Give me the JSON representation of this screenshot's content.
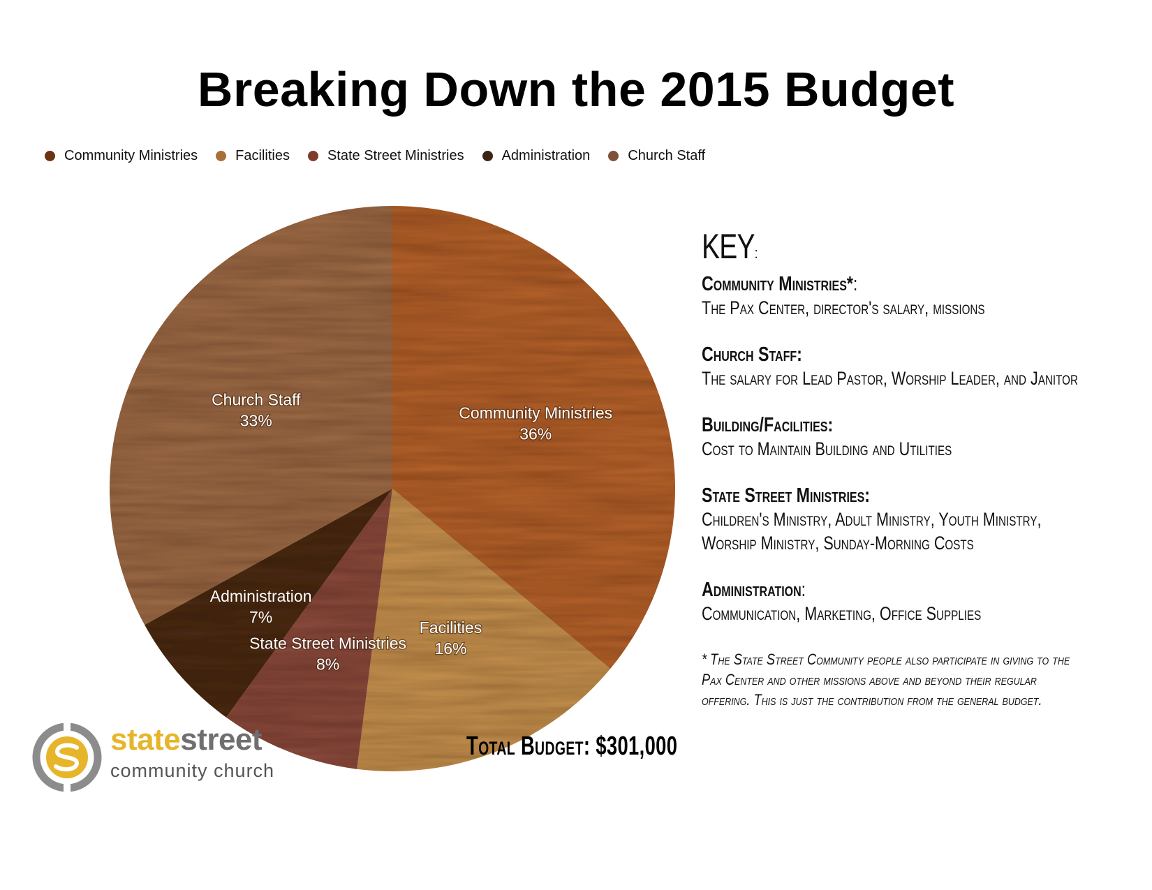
{
  "title": "Breaking Down the 2015 Budget",
  "chart_data": {
    "type": "pie",
    "title": "Breaking Down the 2015 Budget",
    "legend_position": "top-left",
    "legend": [
      {
        "name": "Community Ministries",
        "color": "#6b3414"
      },
      {
        "name": "Facilities",
        "color": "#a8703a"
      },
      {
        "name": "State Street Ministries",
        "color": "#7d3d2a"
      },
      {
        "name": "Administration",
        "color": "#3c2312"
      },
      {
        "name": "Church Staff",
        "color": "#7e5238"
      }
    ],
    "slices": [
      {
        "name": "Community Ministries",
        "label": "Community Ministries",
        "value": 36,
        "value_label": "36%",
        "color": "#b5622a"
      },
      {
        "name": "Facilities",
        "label": "Facilities",
        "value": 16,
        "value_label": "16%",
        "color": "#c6924f"
      },
      {
        "name": "State Street Ministries",
        "label": "State Street Ministries",
        "value": 8,
        "value_label": "8%",
        "color": "#8a4a3c"
      },
      {
        "name": "Administration",
        "label": "Administration",
        "value": 7,
        "value_label": "7%",
        "color": "#4a2a14"
      },
      {
        "name": "Church Staff",
        "label": "Church Staff",
        "value": 33,
        "value_label": "33%",
        "color": "#9d6b46"
      }
    ]
  },
  "key": {
    "title": "KEY",
    "title_colon": ":",
    "sections": [
      {
        "head": "Community Ministries*",
        "head_suffix": ":",
        "lines": [
          "The Pax Center, director's salary, missions"
        ]
      },
      {
        "head": "Church Staff:",
        "head_suffix": "",
        "lines": [
          "The salary for Lead Pastor, Worship Leader, and Janitor"
        ]
      },
      {
        "head": "Building/Facilities:",
        "head_suffix": "",
        "lines": [
          "Cost to Maintain Building and Utilities"
        ]
      },
      {
        "head": "State Street Ministries:",
        "head_suffix": "",
        "lines": [
          "Children's Ministry, Adult Ministry, Youth Ministry,",
          "Worship Ministry, Sunday-Morning Costs"
        ]
      },
      {
        "head": "Administration",
        "head_suffix": ":",
        "lines": [
          "Communication, Marketing, Office Supplies"
        ]
      }
    ],
    "note": [
      "* The State Street Community people also participate in giving to the",
      "Pax Center and other missions above and beyond their regular",
      "offering. This is just the contribution from the general budget."
    ]
  },
  "total": "Total Budget: $301,000",
  "logo": {
    "name_part1": "state",
    "name_part2": "street",
    "subtitle": "community church",
    "icon": "ss-ring-logo-icon",
    "colors": {
      "gold": "#e6b52a",
      "gray": "#8c8c8c"
    }
  }
}
